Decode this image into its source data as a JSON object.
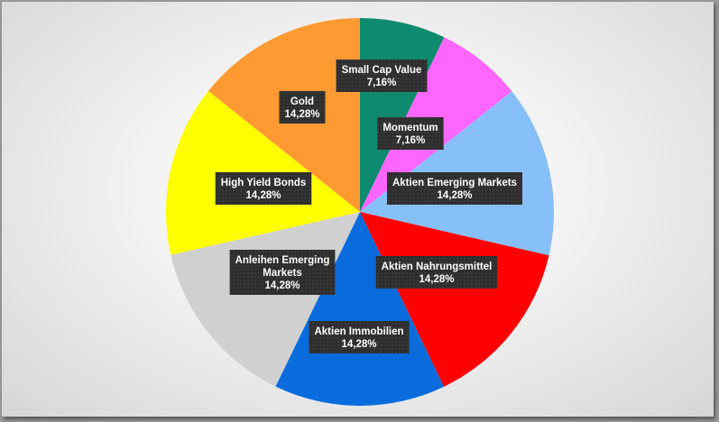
{
  "chart_data": {
    "type": "pie",
    "title": "",
    "slices": [
      {
        "label": "Small Cap Value",
        "value": 7.16,
        "display": "7,16%",
        "color": "#0e8a6e"
      },
      {
        "label": "Momentum",
        "value": 7.16,
        "display": "7,16%",
        "color": "#ff66ff"
      },
      {
        "label": "Aktien Emerging Markets",
        "value": 14.28,
        "display": "14,28%",
        "color": "#87c0f8"
      },
      {
        "label": "Aktien Nahrungsmittel",
        "value": 14.28,
        "display": "14,28%",
        "color": "#ff0000"
      },
      {
        "label": "Aktien Immobilien",
        "value": 14.28,
        "display": "14,28%",
        "color": "#0a6cdc"
      },
      {
        "label": "Anleihen Emerging Markets",
        "value": 14.28,
        "display": "14,28%",
        "color": "#d0d0d0"
      },
      {
        "label": "High Yield Bonds",
        "value": 14.28,
        "display": "14,28%",
        "color": "#ffff00"
      },
      {
        "label": "Gold",
        "value": 14.28,
        "display": "14,28%",
        "color": "#ff9a33"
      }
    ]
  }
}
